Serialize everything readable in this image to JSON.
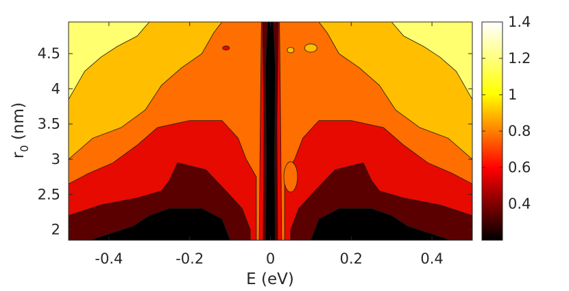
{
  "chart_data": {
    "type": "heatmap",
    "subtype": "filled-contour",
    "title": "",
    "xlabel": "E (eV)",
    "ylabel_main": "r",
    "ylabel_sub": "0",
    "ylabel_rest": " (nm)",
    "xlim": [
      -0.5,
      0.5
    ],
    "ylim": [
      1.85,
      4.95
    ],
    "xticks": [
      -0.4,
      -0.2,
      0,
      0.2,
      0.4
    ],
    "xtick_labels": [
      "-0.4",
      "-0.2",
      "0",
      "0.2",
      "0.4"
    ],
    "yticks": [
      2,
      2.5,
      3,
      3.5,
      4,
      4.5
    ],
    "ytick_labels": [
      "2",
      "2.5",
      "3",
      "3.5",
      "4",
      "4.5"
    ],
    "colorbar": {
      "colormap": "hot",
      "range": [
        0.2,
        1.4
      ],
      "ticks": [
        0.4,
        0.6,
        0.8,
        1,
        1.2,
        1.4
      ],
      "tick_labels": [
        "0.4",
        "0.6",
        "0.8",
        "1",
        "1.2",
        "1.4"
      ]
    },
    "contour_levels": [
      0.4,
      0.6,
      0.8,
      1.0,
      1.2
    ],
    "level_colors": [
      "#000000",
      "#5a0000",
      "#e60a00",
      "#ff6e00",
      "#ffbe00",
      "#ffff70"
    ],
    "level_bands": {
      "band_1_2_to_1_4": [
        {
          "E": -0.5,
          "r0": 3.85
        },
        {
          "E": -0.46,
          "r0": 4.25
        },
        {
          "E": -0.42,
          "r0": 4.45
        },
        {
          "E": -0.38,
          "r0": 4.6
        },
        {
          "E": -0.33,
          "r0": 4.75
        },
        {
          "E": -0.3,
          "r0": 4.95
        }
      ],
      "band_1_0_to_1_2": [
        {
          "E": -0.5,
          "r0": 3.0
        },
        {
          "E": -0.44,
          "r0": 3.3
        },
        {
          "E": -0.37,
          "r0": 3.45
        },
        {
          "E": -0.31,
          "r0": 3.7
        },
        {
          "E": -0.27,
          "r0": 4.05
        },
        {
          "E": -0.22,
          "r0": 4.3
        },
        {
          "E": -0.17,
          "r0": 4.5
        },
        {
          "E": -0.14,
          "r0": 4.8
        },
        {
          "E": -0.12,
          "r0": 4.95
        }
      ],
      "band_0_8_to_1_0": [
        {
          "E": -0.5,
          "r0": 2.65
        },
        {
          "E": -0.45,
          "r0": 2.8
        },
        {
          "E": -0.39,
          "r0": 2.95
        },
        {
          "E": -0.33,
          "r0": 3.2
        },
        {
          "E": -0.28,
          "r0": 3.45
        },
        {
          "E": -0.2,
          "r0": 3.55
        },
        {
          "E": -0.12,
          "r0": 3.55
        },
        {
          "E": -0.08,
          "r0": 3.3
        },
        {
          "E": -0.06,
          "r0": 3.0
        },
        {
          "E": -0.035,
          "r0": 2.75
        }
      ],
      "band_0_6_to_0_8": [
        {
          "E": -0.5,
          "r0": 2.2
        },
        {
          "E": -0.42,
          "r0": 2.35
        },
        {
          "E": -0.33,
          "r0": 2.45
        },
        {
          "E": -0.27,
          "r0": 2.55
        },
        {
          "E": -0.25,
          "r0": 2.7
        },
        {
          "E": -0.23,
          "r0": 2.95
        },
        {
          "E": -0.16,
          "r0": 2.85
        },
        {
          "E": -0.11,
          "r0": 2.55
        },
        {
          "E": -0.07,
          "r0": 2.3
        },
        {
          "E": -0.05,
          "r0": 2.0
        }
      ],
      "band_0_4_to_0_6": [
        {
          "E": -0.34,
          "r0": 2.05
        },
        {
          "E": -0.3,
          "r0": 2.2
        },
        {
          "E": -0.25,
          "r0": 2.3
        },
        {
          "E": -0.17,
          "r0": 2.3
        },
        {
          "E": -0.12,
          "r0": 2.15
        },
        {
          "E": -0.1,
          "r0": 1.85
        }
      ]
    }
  }
}
